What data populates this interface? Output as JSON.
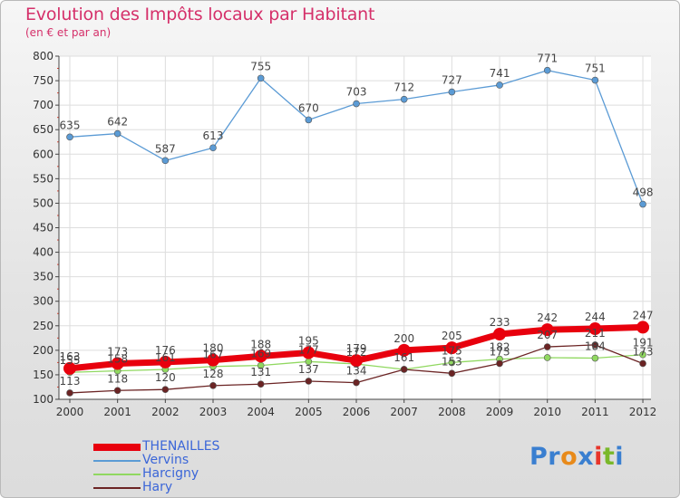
{
  "title": "Evolution des Impôts locaux par Habitant",
  "subtitle": "(en € et par an)",
  "logo": {
    "text": "Proxiti",
    "letters": [
      "P",
      "r",
      "o",
      "x",
      "i",
      "t",
      "i"
    ],
    "colors": [
      "#3a7fd0",
      "#3a7fd0",
      "#e88a1a",
      "#3a7fd0",
      "#e8352a",
      "#7ab82a",
      "#3a7fd0"
    ]
  },
  "chart_data": {
    "type": "line",
    "x": [
      "2000",
      "2001",
      "2002",
      "2003",
      "2004",
      "2005",
      "2006",
      "2007",
      "2008",
      "2009",
      "2010",
      "2011",
      "2012"
    ],
    "ylim": [
      100,
      800
    ],
    "yticks": [
      100,
      150,
      200,
      250,
      300,
      350,
      400,
      450,
      500,
      550,
      600,
      650,
      700,
      750,
      800
    ],
    "grid": true,
    "legend_position": "bottom-left",
    "series": [
      {
        "name": "THENAILLES",
        "color": "#e8000d",
        "bold": true,
        "values": [
          163,
          173,
          176,
          180,
          188,
          195,
          179,
          200,
          205,
          233,
          242,
          244,
          247
        ],
        "labels": [
          "163",
          "173",
          "176",
          "180",
          "188",
          "195",
          "179",
          "200",
          "205",
          "233",
          "242",
          "244",
          "247"
        ]
      },
      {
        "name": "Vervins",
        "color": "#5b9bd5",
        "bold": false,
        "values": [
          635,
          642,
          587,
          613,
          755,
          670,
          703,
          712,
          727,
          741,
          771,
          751,
          498
        ],
        "labels": [
          "635",
          "642",
          "587",
          "613",
          "755",
          "670",
          "703",
          "712",
          "727",
          "741",
          "771",
          "751",
          "498"
        ]
      },
      {
        "name": "Harcigny",
        "color": "#90d860",
        "bold": false,
        "values": [
          155,
          158,
          161,
          167,
          169,
          177,
          172,
          161,
          175,
          182,
          185,
          184,
          191
        ],
        "labels": [
          "155",
          "158",
          "161",
          "167",
          "169",
          "177",
          "172",
          "161",
          "175",
          "182",
          "",
          "184",
          "191"
        ]
      },
      {
        "name": "Hary",
        "color": "#6b2424",
        "bold": false,
        "values": [
          113,
          118,
          120,
          128,
          131,
          137,
          134,
          161,
          153,
          173,
          207,
          211,
          173
        ],
        "labels": [
          "113",
          "118",
          "120",
          "128",
          "131",
          "137",
          "134",
          "",
          "153",
          "173",
          "207",
          "211",
          "173"
        ]
      }
    ]
  }
}
